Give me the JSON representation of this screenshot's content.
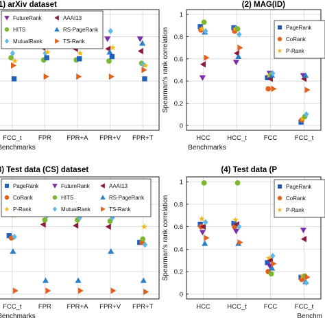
{
  "colors": {
    "PageRank": "#1f5fbf",
    "FutureRank": "#7b2cab",
    "AAAI13": "#8c1a3a",
    "CoRank": "#e0601c",
    "HITS": "#7cb82f",
    "RS-PageRank": "#2a7fc9",
    "P-Rank": "#f2b51a",
    "MutualRank": "#5fb8e8",
    "TS-Rank": "#e0601c"
  },
  "chart_data": [
    {
      "id": "p1",
      "type": "scatter",
      "title": "(1) arXiv dataset",
      "xlabel": "Benchmarks",
      "ylabel": "",
      "categories": [
        "FCC_t",
        "FPR",
        "FPR+A",
        "FPR+V",
        "FPR+T"
      ],
      "ylim": [
        0,
        1
      ],
      "yticks": [],
      "grid": true,
      "legend": {
        "placement": "top",
        "entries": [
          "FutureRank",
          "AAAI13",
          "HITS",
          "RS-PageRank",
          "MutualRank",
          "TS-Rank"
        ]
      },
      "series": [
        {
          "name": "FutureRank",
          "marker": "triangle-down",
          "values": [
            0.8,
            0.78,
            0.82,
            0.78,
            0.78
          ]
        },
        {
          "name": "AAAI13",
          "marker": "triangle-left",
          "values": [
            0.78,
            0.7,
            0.69,
            0.69,
            0.67
          ]
        },
        {
          "name": "HITS",
          "marker": "circle",
          "values": [
            0.61,
            0.59,
            0.59,
            0.58,
            0.56
          ]
        },
        {
          "name": "RS-PageRank",
          "marker": "triangle-up",
          "values": [
            0.73,
            0.72,
            0.73,
            0.66,
            0.74
          ]
        },
        {
          "name": "MutualRank",
          "marker": "diamond",
          "values": [
            0.65,
            0.65,
            0.87,
            0.85,
            0.55
          ]
        },
        {
          "name": "TS-Rank",
          "marker": "triangle-right",
          "values": [
            0.54,
            0.44,
            0.44,
            0.44,
            0.5
          ]
        },
        {
          "name": "",
          "color": "PageRank",
          "marker": "square",
          "values": [
            0.42,
            0.61,
            0.6,
            0.62,
            0.42
          ]
        },
        {
          "name": "",
          "color": "P-Rank",
          "marker": "star",
          "values": [
            0.58,
            0.66,
            0.65,
            0.7,
            0.54
          ]
        }
      ]
    },
    {
      "id": "p2",
      "type": "scatter",
      "title": "(2) MAG(ID)",
      "xlabel": "Benchmarks",
      "ylabel": "Spearman's rank correlation",
      "categories": [
        "HCC",
        "HCC_t",
        "FCC",
        "FCC_t"
      ],
      "ylim": [
        0,
        1
      ],
      "yticks": [
        0,
        0.2,
        0.4,
        0.6,
        0.8,
        1
      ],
      "grid": true,
      "legend": {
        "placement": "top-right",
        "entries": [
          "PageRank",
          "CoRank",
          "P-Rank"
        ]
      },
      "series": [
        {
          "name": "PageRank",
          "marker": "square",
          "values": [
            0.89,
            0.88,
            0.43,
            0.03
          ]
        },
        {
          "name": "CoRank",
          "marker": "circle",
          "values": [
            0.86,
            0.85,
            0.33,
            0.05
          ]
        },
        {
          "name": "P-Rank",
          "marker": "star",
          "values": [
            0.87,
            0.87,
            0.45,
            0.06
          ]
        },
        {
          "name": "",
          "color": "FutureRank",
          "marker": "triangle-down",
          "values": [
            0.43,
            0.57,
            0.47,
            0.45
          ]
        },
        {
          "name": "",
          "color": "AAAI13",
          "marker": "triangle-left",
          "values": [
            0.55,
            0.65,
            0.42,
            0.42
          ]
        },
        {
          "name": "",
          "color": "HITS",
          "marker": "circle",
          "values": [
            0.93,
            0.87,
            0.46,
            0.08
          ]
        },
        {
          "name": "",
          "color": "RS-PageRank",
          "marker": "triangle-up",
          "values": [
            0.84,
            0.62,
            0.45,
            0.45
          ]
        },
        {
          "name": "",
          "color": "MutualRank",
          "marker": "diamond",
          "values": [
            0.85,
            0.82,
            0.47,
            0.1
          ]
        },
        {
          "name": "",
          "color": "TS-Rank",
          "marker": "triangle-right",
          "values": [
            0.61,
            0.7,
            0.33,
            0.32
          ]
        }
      ]
    },
    {
      "id": "p3",
      "type": "scatter",
      "title": "(3) Test data (CS) dataset",
      "xlabel": "Benchmarks",
      "ylabel": "",
      "categories": [
        "FCC_t",
        "FPR",
        "FPR+A",
        "FPR+V",
        "FPR+T"
      ],
      "ylim": [
        0,
        1
      ],
      "yticks": [],
      "grid": true,
      "legend": {
        "placement": "top",
        "entries": [
          "PageRank",
          "FutureRank",
          "AAAI13",
          "CoRank",
          "HITS",
          "RS-PageRank",
          "P-Rank",
          "MutualRank",
          "TS-Rank"
        ]
      },
      "series": [
        {
          "name": "PageRank",
          "marker": "square",
          "values": [
            0.52,
            0.88,
            0.85,
            0.84,
            0.46
          ]
        },
        {
          "name": "FutureRank",
          "marker": "triangle-down",
          "values": [
            0.72,
            0.74,
            0.73,
            0.72,
            0.74
          ]
        },
        {
          "name": "AAAI13",
          "marker": "triangle-left",
          "values": [
            0.8,
            0.62,
            0.61,
            0.6,
            0.86
          ]
        },
        {
          "name": "CoRank",
          "marker": "circle",
          "values": [
            0.5,
            0.75,
            0.75,
            0.72,
            0.46
          ]
        },
        {
          "name": "HITS",
          "marker": "circle",
          "values": [
            0.73,
            0.66,
            0.66,
            0.65,
            0.49
          ]
        },
        {
          "name": "RS-PageRank",
          "marker": "triangle-up",
          "values": [
            0.38,
            0.12,
            0.12,
            0.38,
            0.12
          ]
        },
        {
          "name": "P-Rank",
          "marker": "star",
          "values": [
            0.7,
            0.84,
            0.8,
            0.9,
            0.6
          ]
        },
        {
          "name": "MutualRank",
          "marker": "diamond",
          "values": [
            0.51,
            0.7,
            0.68,
            0.68,
            0.44
          ]
        },
        {
          "name": "TS-Rank",
          "marker": "triangle-right",
          "values": [
            0.03,
            0.03,
            0.03,
            0.03,
            0.02
          ]
        }
      ]
    },
    {
      "id": "p4",
      "type": "scatter",
      "title": "(4) Test data (P",
      "xlabel": "Benchm",
      "ylabel": "Spearman's rank correlation",
      "categories": [
        "HCC",
        "HCC_t",
        "FCC",
        "FCC_t"
      ],
      "ylim": [
        0,
        1
      ],
      "yticks": [
        0,
        0.2,
        0.4,
        0.6,
        0.8,
        1
      ],
      "grid": true,
      "legend": {
        "placement": "top-right",
        "entries": [
          "PageRank",
          "CoRank",
          "P-Rank"
        ]
      },
      "series": [
        {
          "name": "PageRank",
          "marker": "square",
          "values": [
            0.62,
            0.63,
            0.28,
            0.15
          ]
        },
        {
          "name": "CoRank",
          "marker": "circle",
          "values": [
            0.6,
            0.6,
            0.2,
            0.13
          ]
        },
        {
          "name": "P-Rank",
          "marker": "star",
          "values": [
            0.67,
            0.66,
            0.32,
            0.16
          ]
        },
        {
          "name": "",
          "color": "FutureRank",
          "marker": "triangle-down",
          "values": [
            0.55,
            0.56,
            0.25,
            0.57
          ]
        },
        {
          "name": "",
          "color": "AAAI13",
          "marker": "triangle-left",
          "values": [
            0.6,
            0.62,
            0.3,
            0.49
          ]
        },
        {
          "name": "",
          "color": "HITS",
          "marker": "circle",
          "values": [
            0.99,
            0.99,
            0.18,
            0.16
          ]
        },
        {
          "name": "",
          "color": "RS-PageRank",
          "marker": "triangle-up",
          "values": [
            0.45,
            0.45,
            0.23,
            0.11
          ]
        },
        {
          "name": "",
          "color": "MutualRank",
          "marker": "diamond",
          "values": [
            0.64,
            0.6,
            0.34,
            0.1
          ]
        },
        {
          "name": "",
          "color": "TS-Rank",
          "marker": "triangle-right",
          "values": [
            0.5,
            0.46,
            0.27,
            0.15
          ]
        }
      ]
    }
  ]
}
